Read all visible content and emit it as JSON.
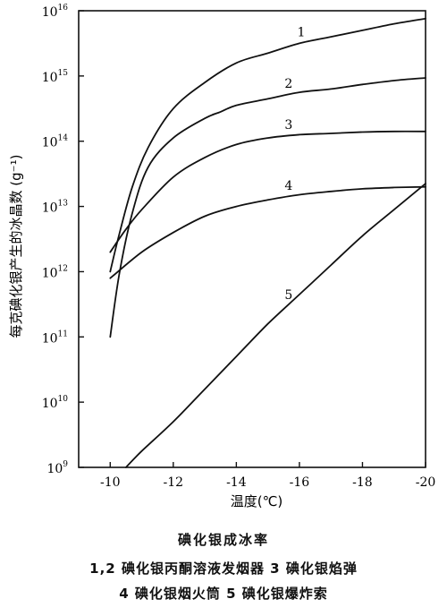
{
  "chart_data": {
    "type": "line",
    "title": "",
    "xlabel": "温度(℃)",
    "ylabel": "每克碘化银产生的冰晶数 (g⁻¹)",
    "xlim": [
      -9,
      -20
    ],
    "y_scale": "log",
    "ylim_exponent": [
      9,
      16
    ],
    "x_ticks": [
      "-10",
      "-12",
      "-14",
      "-16",
      "-18",
      "-20"
    ],
    "x_tick_values": [
      -10,
      -12,
      -14,
      -16,
      -18,
      -20
    ],
    "y_ticks": [
      {
        "base": "10",
        "exp": "9"
      },
      {
        "base": "10",
        "exp": "10"
      },
      {
        "base": "10",
        "exp": "11"
      },
      {
        "base": "10",
        "exp": "12"
      },
      {
        "base": "10",
        "exp": "13"
      },
      {
        "base": "10",
        "exp": "14"
      },
      {
        "base": "10",
        "exp": "15"
      },
      {
        "base": "10",
        "exp": "16"
      }
    ],
    "y_tick_exponents": [
      9,
      10,
      11,
      12,
      13,
      14,
      15,
      16
    ],
    "grid": false,
    "series": [
      {
        "name": "1",
        "x": [
          -10,
          -10.3,
          -10.7,
          -11.2,
          -12,
          -13,
          -14,
          -15,
          -16,
          -17,
          -18,
          -19,
          -20
        ],
        "log10_y": [
          12.0,
          12.6,
          13.3,
          13.9,
          14.5,
          14.9,
          15.2,
          15.35,
          15.5,
          15.6,
          15.7,
          15.8,
          15.88
        ]
      },
      {
        "name": "2",
        "x": [
          -10,
          -10.3,
          -10.7,
          -11.2,
          -12,
          -13,
          -13.5,
          -14,
          -15,
          -16,
          -17,
          -18,
          -19,
          -20
        ],
        "log10_y": [
          11.0,
          12.0,
          12.9,
          13.6,
          14.05,
          14.35,
          14.45,
          14.55,
          14.65,
          14.75,
          14.8,
          14.87,
          14.93,
          14.97
        ]
      },
      {
        "name": "3",
        "x": [
          -10,
          -10.5,
          -11,
          -12,
          -13,
          -14,
          -15,
          -16,
          -17,
          -18,
          -19,
          -20
        ],
        "log10_y": [
          12.3,
          12.65,
          12.95,
          13.45,
          13.75,
          13.95,
          14.05,
          14.1,
          14.12,
          14.14,
          14.15,
          14.15
        ]
      },
      {
        "name": "4",
        "x": [
          -10,
          -11,
          -12,
          -13,
          -14,
          -15,
          -16,
          -17,
          -18,
          -19,
          -20
        ],
        "log10_y": [
          11.9,
          12.3,
          12.6,
          12.85,
          13.0,
          13.1,
          13.18,
          13.23,
          13.27,
          13.29,
          13.3
        ]
      },
      {
        "name": "5",
        "x": [
          -10.5,
          -11,
          -12,
          -13,
          -14,
          -15,
          -16,
          -17,
          -18,
          -19,
          -20
        ],
        "log10_y": [
          9.0,
          9.25,
          9.7,
          10.2,
          10.7,
          11.2,
          11.65,
          12.1,
          12.55,
          12.95,
          13.35
        ]
      }
    ],
    "series_label_at_x": {
      "1": -16.0,
      "2": -15.6,
      "3": -15.6,
      "4": -15.6,
      "5": -15.6
    }
  },
  "caption": {
    "title": "碘化银成冰率",
    "line1": "1,2 碘化银丙酮溶液发烟器   3 碘化银焰弹",
    "line2": "4 碘化银烟火筒   5 碘化银爆炸索"
  }
}
